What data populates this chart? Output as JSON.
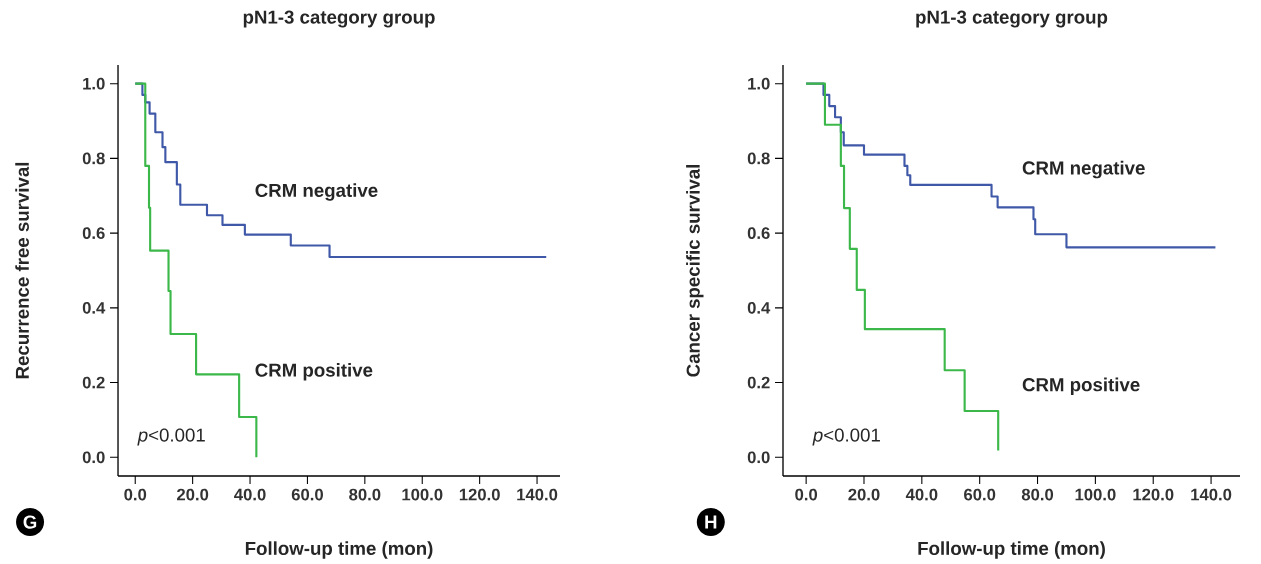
{
  "chart_data": [
    {
      "type": "step",
      "title": "pN1-3 category group",
      "xlabel": "Follow-up time (mon)",
      "ylabel": "Recurrence free survival",
      "annotations": [
        "*p*<0.001",
        "G"
      ],
      "xlim": [
        -6,
        148
      ],
      "ylim": [
        -0.05,
        1.05
      ],
      "xticks": [
        {
          "value": 0,
          "label": "0.0"
        },
        {
          "value": 20,
          "label": "20.0"
        },
        {
          "value": 40,
          "label": "40.0"
        },
        {
          "value": 60,
          "label": "60.0"
        },
        {
          "value": 80,
          "label": "80.0"
        },
        {
          "value": 100,
          "label": "100.0"
        },
        {
          "value": 120,
          "label": "120.0"
        },
        {
          "value": 140,
          "label": "140.0"
        }
      ],
      "yticks": [
        {
          "value": 0,
          "label": "0.0"
        },
        {
          "value": 0.2,
          "label": "0.2"
        },
        {
          "value": 0.4,
          "label": "0.4"
        },
        {
          "value": 0.6,
          "label": "0.6"
        },
        {
          "value": 0.8,
          "label": "0.8"
        },
        {
          "value": 1,
          "label": "1.0"
        }
      ],
      "series": [
        {
          "name": "CRM negative",
          "color": "#3f58a8",
          "x": [
            0,
            2.5,
            3.5,
            5,
            7,
            9.5,
            10.5,
            14.5,
            15.7,
            25,
            30.4,
            38.2,
            54.2,
            67.7,
            143.2
          ],
          "values": [
            1.0,
            0.97,
            0.95,
            0.92,
            0.87,
            0.83,
            0.79,
            0.73,
            0.676,
            0.648,
            0.622,
            0.596,
            0.567,
            0.536,
            0.536
          ]
        },
        {
          "name": "CRM positive",
          "color": "#3cb84a",
          "x": [
            0,
            3.5,
            4.8,
            5.2,
            11.6,
            12.3,
            21.2,
            36.2,
            42.2
          ],
          "values": [
            1.0,
            0.78,
            0.668,
            0.553,
            0.445,
            0.33,
            0.222,
            0.108,
            0.0
          ]
        }
      ]
    },
    {
      "type": "step",
      "title": "pN1-3 category group",
      "xlabel": "Follow-up time (mon)",
      "ylabel": "Cancer specific survival",
      "annotations": [
        "*p*<0.001",
        "H"
      ],
      "xlim": [
        -8,
        150
      ],
      "ylim": [
        -0.05,
        1.05
      ],
      "xticks": [
        {
          "value": 0,
          "label": "0.0"
        },
        {
          "value": 20,
          "label": "20.0"
        },
        {
          "value": 40,
          "label": "40.0"
        },
        {
          "value": 60,
          "label": "60.0"
        },
        {
          "value": 80,
          "label": "80.0"
        },
        {
          "value": 100,
          "label": "100.0"
        },
        {
          "value": 120,
          "label": "120.0"
        },
        {
          "value": 140,
          "label": "140.0"
        }
      ],
      "yticks": [
        {
          "value": 0,
          "label": "0.0"
        },
        {
          "value": 0.2,
          "label": "0.2"
        },
        {
          "value": 0.4,
          "label": "0.4"
        },
        {
          "value": 0.6,
          "label": "0.6"
        },
        {
          "value": 0.8,
          "label": "0.8"
        },
        {
          "value": 1,
          "label": "1.0"
        }
      ],
      "series": [
        {
          "name": "CRM negative",
          "color": "#3f58a8",
          "x": [
            0,
            6,
            8,
            10,
            12,
            13,
            20,
            34,
            35,
            36,
            37.4,
            64.1,
            66.2,
            78.6,
            79.2,
            90.0,
            141.5
          ],
          "values": [
            1.0,
            0.97,
            0.94,
            0.91,
            0.87,
            0.835,
            0.81,
            0.78,
            0.755,
            0.729,
            0.729,
            0.698,
            0.669,
            0.637,
            0.597,
            0.562,
            0.562
          ]
        },
        {
          "name": "CRM positive",
          "color": "#3cb84a",
          "x": [
            0,
            6.5,
            12,
            13.1,
            15.1,
            17.5,
            20.3,
            47.9,
            54.8,
            66.4
          ],
          "values": [
            1.0,
            0.89,
            0.78,
            0.667,
            0.558,
            0.448,
            0.343,
            0.233,
            0.124,
            0.018
          ]
        }
      ]
    }
  ]
}
